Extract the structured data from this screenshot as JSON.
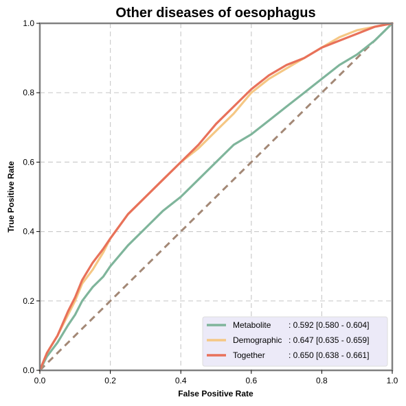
{
  "chart_data": {
    "type": "line",
    "title": "Other diseases of oesophagus",
    "xlabel": "False Positive Rate",
    "ylabel": "True Positive Rate",
    "xlim": [
      0,
      1
    ],
    "ylim": [
      0,
      1
    ],
    "xticks": [
      "0.0",
      "0.2",
      "0.4",
      "0.6",
      "0.8",
      "1.0"
    ],
    "yticks": [
      "0.0",
      "0.2",
      "0.4",
      "0.6",
      "0.8",
      "1.0"
    ],
    "grid": true,
    "legend_position": "lower-right",
    "series": [
      {
        "name": "Metabolite",
        "legend_name": "Metabolite",
        "legend_value": ": 0.592 [0.580 - 0.604]",
        "color": "#7fb59b",
        "x": [
          0,
          0.02,
          0.05,
          0.08,
          0.1,
          0.12,
          0.15,
          0.18,
          0.2,
          0.25,
          0.3,
          0.35,
          0.4,
          0.45,
          0.5,
          0.55,
          0.6,
          0.65,
          0.7,
          0.75,
          0.8,
          0.85,
          0.9,
          0.95,
          1.0
        ],
        "y": [
          0,
          0.04,
          0.08,
          0.13,
          0.16,
          0.2,
          0.24,
          0.27,
          0.3,
          0.36,
          0.41,
          0.46,
          0.5,
          0.55,
          0.6,
          0.65,
          0.68,
          0.72,
          0.76,
          0.8,
          0.84,
          0.88,
          0.91,
          0.95,
          1.0
        ]
      },
      {
        "name": "Demographic",
        "legend_name": "Demographic",
        "legend_value": ": 0.647 [0.635 - 0.659]",
        "color": "#f5c784",
        "x": [
          0,
          0.02,
          0.05,
          0.08,
          0.1,
          0.12,
          0.15,
          0.18,
          0.2,
          0.25,
          0.3,
          0.35,
          0.4,
          0.45,
          0.5,
          0.55,
          0.6,
          0.65,
          0.7,
          0.75,
          0.8,
          0.85,
          0.9,
          0.95,
          1.0
        ],
        "y": [
          0,
          0.05,
          0.1,
          0.16,
          0.2,
          0.25,
          0.29,
          0.34,
          0.38,
          0.45,
          0.5,
          0.55,
          0.6,
          0.64,
          0.69,
          0.74,
          0.8,
          0.84,
          0.87,
          0.9,
          0.93,
          0.96,
          0.98,
          0.99,
          1.0
        ]
      },
      {
        "name": "Together",
        "legend_name": "Together",
        "legend_value": ": 0.650 [0.638 - 0.661]",
        "color": "#e8715a",
        "x": [
          0,
          0.02,
          0.05,
          0.08,
          0.1,
          0.12,
          0.15,
          0.18,
          0.2,
          0.25,
          0.3,
          0.35,
          0.4,
          0.45,
          0.5,
          0.55,
          0.6,
          0.65,
          0.7,
          0.75,
          0.8,
          0.85,
          0.9,
          0.95,
          1.0
        ],
        "y": [
          0,
          0.05,
          0.1,
          0.17,
          0.21,
          0.26,
          0.31,
          0.35,
          0.38,
          0.45,
          0.5,
          0.55,
          0.6,
          0.65,
          0.71,
          0.76,
          0.81,
          0.85,
          0.88,
          0.9,
          0.93,
          0.95,
          0.97,
          0.99,
          1.0
        ]
      }
    ],
    "reference_line": {
      "x": [
        0,
        1
      ],
      "y": [
        0,
        1
      ],
      "color": "#a38876",
      "style": "dashed"
    },
    "legend_background": "#eceaf8"
  }
}
